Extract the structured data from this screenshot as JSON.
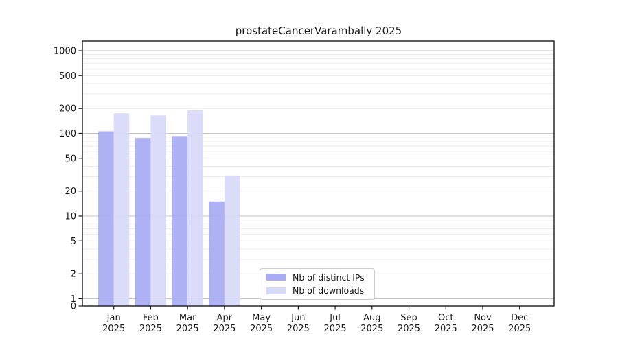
{
  "title": "prostateCancerVarambally 2025",
  "colors": {
    "distinct_ips": "#a9abf4",
    "downloads": "#d7d9f9",
    "grid_major": "#c4c4c4",
    "grid_minor": "#ececec",
    "axis": "#1a1a1a",
    "background": "#ffffff"
  },
  "chart_data": {
    "type": "bar",
    "title": "prostateCancerVarambally 2025",
    "categories": [
      "Jan\n2025",
      "Feb\n2025",
      "Mar\n2025",
      "Apr\n2025",
      "May\n2025",
      "Jun\n2025",
      "Jul\n2025",
      "Aug\n2025",
      "Sep\n2025",
      "Oct\n2025",
      "Nov\n2025",
      "Dec\n2025"
    ],
    "series": [
      {
        "name": "Nb of distinct IPs",
        "color": "#a9abf4",
        "values": [
          106,
          88,
          93,
          15,
          0,
          0,
          0,
          0,
          0,
          0,
          0,
          0
        ]
      },
      {
        "name": "Nb of downloads",
        "color": "#d7d9f9",
        "values": [
          175,
          165,
          190,
          31,
          0,
          0,
          0,
          0,
          0,
          0,
          0,
          0
        ]
      }
    ],
    "yscale": "symlog",
    "yticks": [
      0,
      1,
      2,
      5,
      10,
      20,
      50,
      100,
      200,
      500,
      1000
    ],
    "ylim": [
      0,
      1300
    ],
    "xlabel": "",
    "ylabel": "",
    "grid": "horizontal, log major + minor",
    "legend_position": "inside bottom-center-left"
  }
}
